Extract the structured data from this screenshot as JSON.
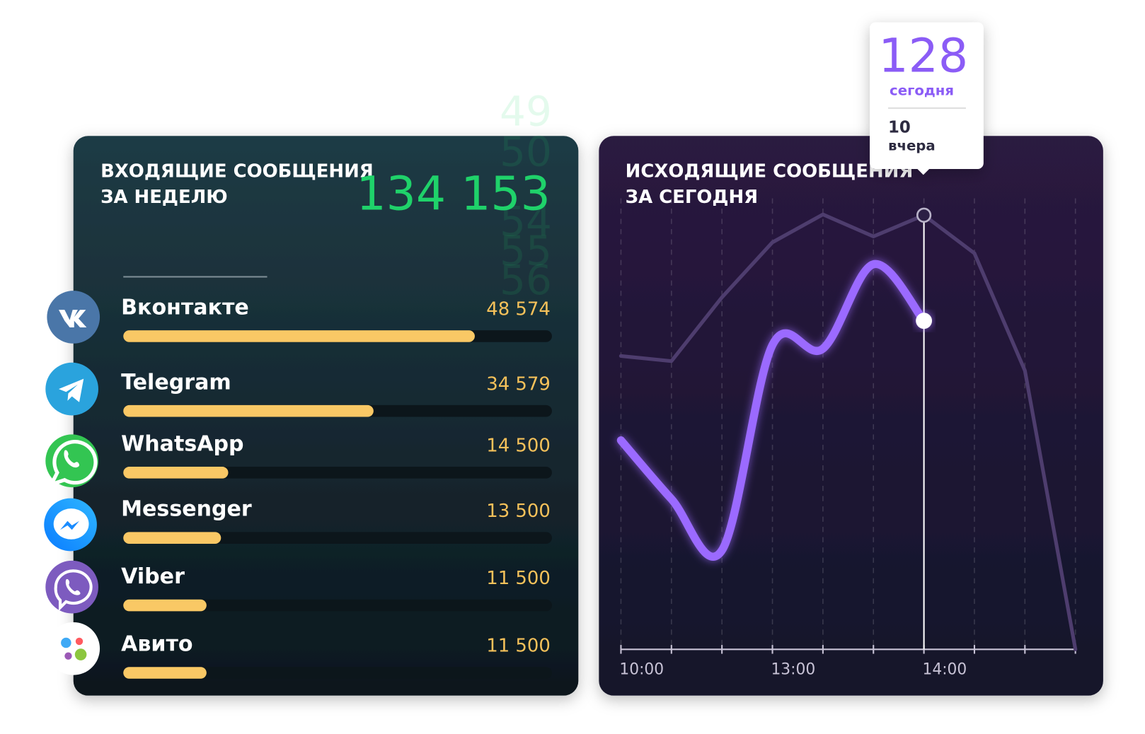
{
  "chart_data": [
    {
      "type": "bar",
      "title": [
        "ВХОДЯЩИЕ СООБЩЕНИЯ",
        "ЗА НЕДЕЛЮ"
      ],
      "total": "134 153",
      "counter_roll": [
        49,
        50,
        54,
        55,
        56
      ],
      "categories": [
        "Вконтакте",
        "Telegram",
        "WhatsApp",
        "Messenger",
        "Viber",
        "Авито"
      ],
      "values": [
        48574,
        34579,
        14500,
        13500,
        11500,
        11500
      ],
      "value_labels": [
        "48 574",
        "34 579",
        "14 500",
        "13 500",
        "11 500",
        "11 500"
      ],
      "color": "#f9c865"
    },
    {
      "type": "line",
      "title": [
        "ИСХОДЯЩИЕ СООБЩЕНИЯ",
        "ЗА СЕГОДНЯ"
      ],
      "categories": [
        "10:00",
        null,
        null,
        "13:00",
        null,
        null,
        "14:00",
        null,
        null,
        null
      ],
      "ylim": [
        0,
        650
      ],
      "series": [
        {
          "name": "сегодня",
          "color": "#9b6bff",
          "values": [
            285,
            205,
            135,
            415,
            410,
            525,
            448,
            null,
            null,
            null
          ]
        },
        {
          "name": "вчера",
          "color": "#4e3d6e",
          "values": [
            400,
            393,
            480,
            555,
            593,
            563,
            592,
            540,
            380,
            0
          ]
        }
      ],
      "tooltip": {
        "today": 128,
        "yesterday": 10
      }
    }
  ]
}
